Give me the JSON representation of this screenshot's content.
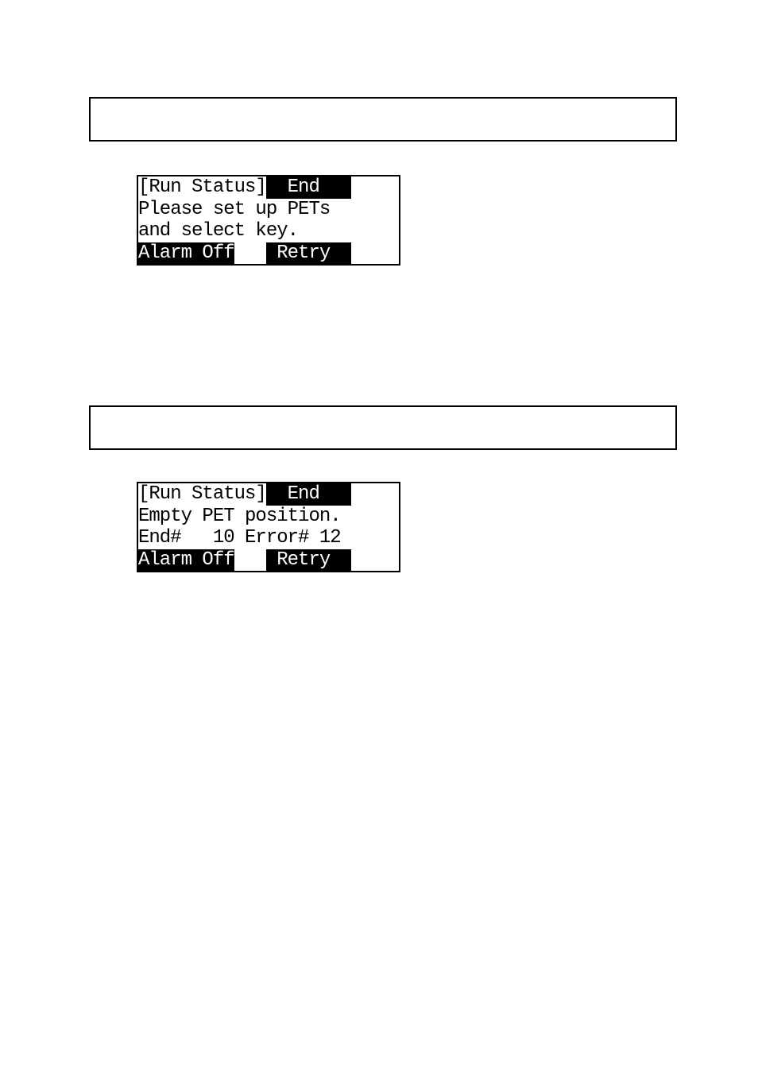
{
  "lcd1": {
    "row1": {
      "seg1": {
        "text": "[Run Status]",
        "inverted": false
      },
      "seg2": {
        "text": "  End   ",
        "inverted": true
      }
    },
    "row2": {
      "seg1": {
        "text": "Please set up PETs  ",
        "inverted": false
      }
    },
    "row3": {
      "seg1": {
        "text": "and select key.     ",
        "inverted": false
      }
    },
    "row4": {
      "seg1": {
        "text": "Alarm Off",
        "inverted": true
      },
      "seg2": {
        "text": "   ",
        "inverted": false
      },
      "seg3": {
        "text": " Retry  ",
        "inverted": true
      }
    }
  },
  "lcd2": {
    "row1": {
      "seg1": {
        "text": "[Run Status]",
        "inverted": false
      },
      "seg2": {
        "text": "  End   ",
        "inverted": true
      }
    },
    "row2": {
      "seg1": {
        "text": "Empty PET position. ",
        "inverted": false
      }
    },
    "row3": {
      "seg1": {
        "text": "End#   10 Error# 12",
        "inverted": false
      }
    },
    "row4": {
      "seg1": {
        "text": "Alarm Off",
        "inverted": true
      },
      "seg2": {
        "text": "   ",
        "inverted": false
      },
      "seg3": {
        "text": " Retry  ",
        "inverted": true
      }
    }
  }
}
